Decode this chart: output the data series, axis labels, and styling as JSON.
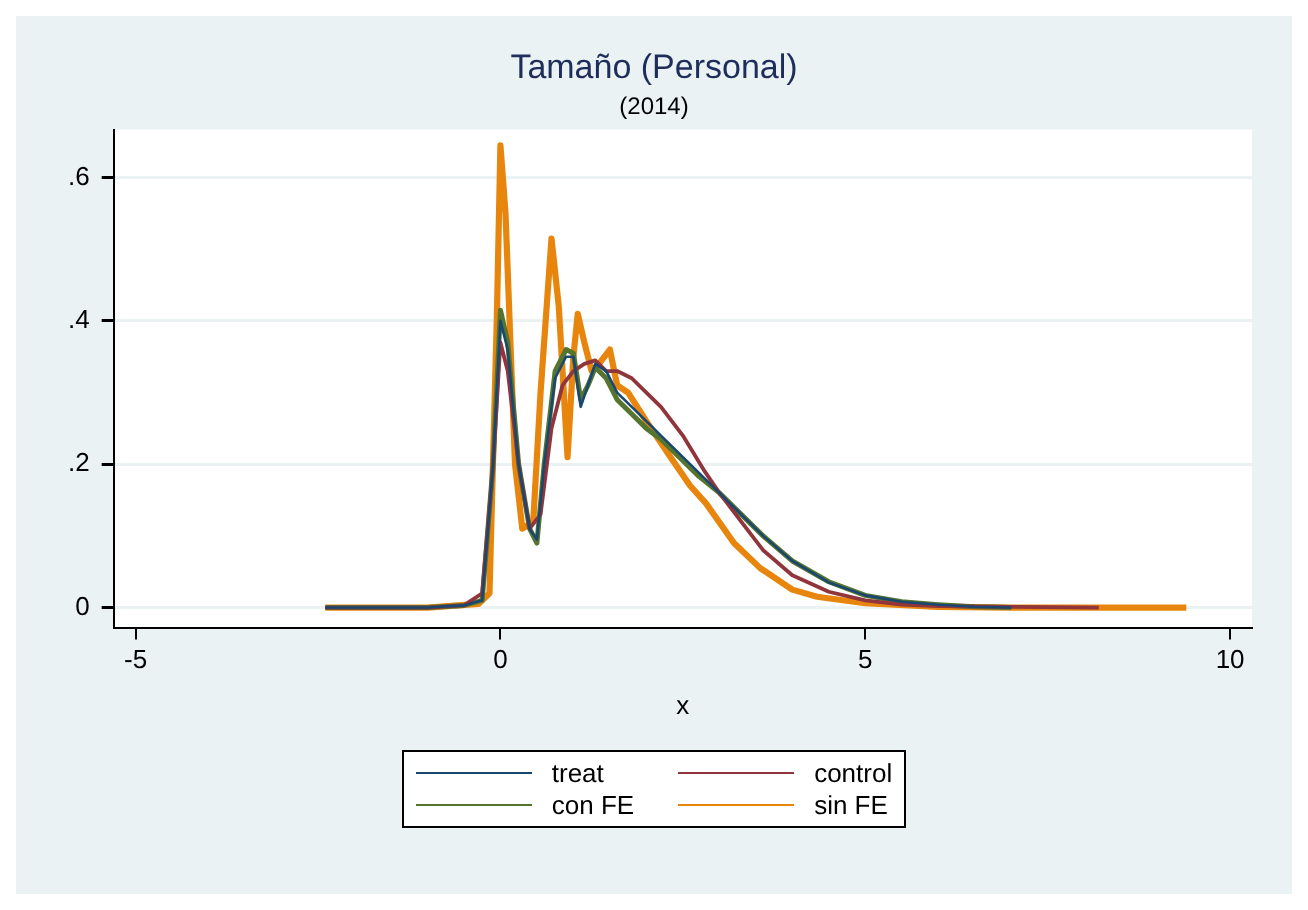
{
  "chart_data": {
    "type": "line",
    "title": "Tamaño (Personal)",
    "subtitle": "(2014)",
    "xlabel": "x",
    "xlim": [
      -5.3,
      10.3
    ],
    "xticks": [
      -5,
      0,
      5,
      10
    ],
    "ylim": [
      -0.028,
      0.667
    ],
    "yticks": [
      {
        "value": 0,
        "label": "0"
      },
      {
        "value": 0.2,
        "label": ".2"
      },
      {
        "value": 0.4,
        "label": ".4"
      },
      {
        "value": 0.6,
        "label": ".6"
      }
    ],
    "grid": "y",
    "legend": "bottom",
    "marker": "none",
    "line_style": "solid",
    "series": [
      {
        "name": "treat",
        "color": "#1a476f",
        "x": [
          -2.4,
          -1,
          -0.5,
          -0.25,
          -0.1,
          0,
          0.1,
          0.25,
          0.4,
          0.5,
          0.6,
          0.75,
          0.9,
          1.0,
          1.1,
          1.2,
          1.3,
          1.45,
          1.6,
          1.8,
          2.0,
          2.2,
          2.4,
          2.7,
          3.0,
          3.3,
          3.6,
          4.0,
          4.5,
          5.0,
          5.5,
          6.0,
          6.5,
          7.0
        ],
        "values": [
          0,
          0,
          0.003,
          0.01,
          0.2,
          0.4,
          0.36,
          0.2,
          0.11,
          0.095,
          0.2,
          0.32,
          0.35,
          0.35,
          0.28,
          0.31,
          0.34,
          0.33,
          0.3,
          0.28,
          0.26,
          0.24,
          0.22,
          0.19,
          0.16,
          0.13,
          0.1,
          0.065,
          0.035,
          0.017,
          0.008,
          0.004,
          0.001,
          0
        ]
      },
      {
        "name": "control",
        "color": "#90353b",
        "x": [
          -2.4,
          -1,
          -0.5,
          -0.25,
          -0.1,
          0,
          0.1,
          0.25,
          0.4,
          0.55,
          0.7,
          0.85,
          1.0,
          1.15,
          1.3,
          1.45,
          1.6,
          1.8,
          2.0,
          2.2,
          2.5,
          2.8,
          3.0,
          3.3,
          3.6,
          4.0,
          4.5,
          5.0,
          5.5,
          6.0,
          7.0,
          8.2
        ],
        "values": [
          0,
          0,
          0.003,
          0.02,
          0.2,
          0.37,
          0.33,
          0.2,
          0.11,
          0.13,
          0.25,
          0.31,
          0.33,
          0.34,
          0.345,
          0.33,
          0.33,
          0.32,
          0.3,
          0.28,
          0.24,
          0.19,
          0.16,
          0.12,
          0.08,
          0.045,
          0.022,
          0.01,
          0.004,
          0.002,
          0.001,
          0
        ]
      },
      {
        "name": "con FE",
        "color": "#55752f",
        "x": [
          -2.4,
          -1,
          -0.5,
          -0.25,
          -0.1,
          0,
          0.1,
          0.25,
          0.4,
          0.5,
          0.6,
          0.75,
          0.9,
          1.0,
          1.1,
          1.2,
          1.3,
          1.45,
          1.6,
          1.8,
          2.0,
          2.2,
          2.4,
          2.7,
          3.0,
          3.3,
          3.6,
          4.0,
          4.5,
          5.0,
          5.5,
          6.0,
          6.5,
          7.0
        ],
        "values": [
          0,
          0,
          0.003,
          0.01,
          0.2,
          0.415,
          0.37,
          0.2,
          0.11,
          0.09,
          0.2,
          0.33,
          0.36,
          0.355,
          0.29,
          0.31,
          0.335,
          0.32,
          0.29,
          0.27,
          0.25,
          0.235,
          0.215,
          0.185,
          0.16,
          0.13,
          0.1,
          0.065,
          0.036,
          0.017,
          0.008,
          0.004,
          0.001,
          0
        ]
      },
      {
        "name": "sin FE",
        "color": "#e8850c",
        "x": [
          -2.4,
          -1,
          -0.3,
          -0.15,
          -0.05,
          0,
          0.07,
          0.2,
          0.3,
          0.45,
          0.55,
          0.7,
          0.8,
          0.92,
          1.0,
          1.06,
          1.15,
          1.25,
          1.35,
          1.5,
          1.6,
          1.75,
          2.0,
          2.33,
          2.6,
          2.82,
          3.2,
          3.56,
          4.0,
          4.34,
          5.0,
          6.0,
          7.0,
          9.4
        ],
        "values": [
          0,
          0,
          0.005,
          0.02,
          0.4,
          0.645,
          0.55,
          0.2,
          0.11,
          0.12,
          0.3,
          0.515,
          0.42,
          0.21,
          0.35,
          0.41,
          0.37,
          0.33,
          0.34,
          0.36,
          0.31,
          0.3,
          0.26,
          0.21,
          0.17,
          0.145,
          0.09,
          0.055,
          0.025,
          0.015,
          0.006,
          0.001,
          0,
          0
        ]
      }
    ]
  }
}
